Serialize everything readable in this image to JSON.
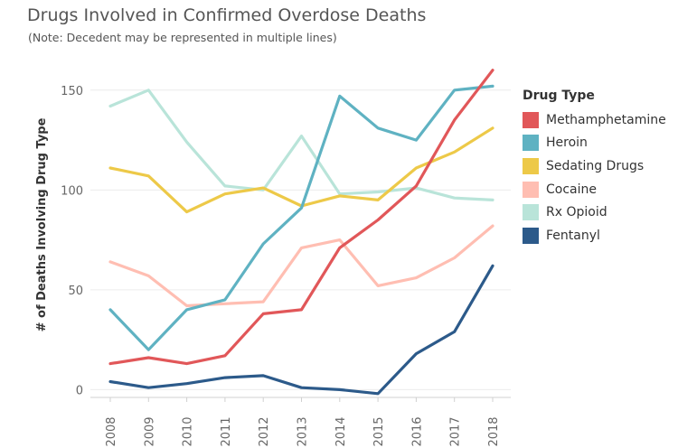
{
  "title": "Drugs Involved in Confirmed Overdose Deaths",
  "subtitle": "(Note: Decedent may be represented in multiple lines)",
  "chart_data": {
    "type": "line",
    "title": "Drugs Involved in Confirmed Overdose Deaths",
    "subtitle": "(Note: Decedent may be represented in multiple lines)",
    "xlabel": "",
    "ylabel": "# of Deaths Involving Drug Type",
    "x": [
      "2008",
      "2009",
      "2010",
      "2011",
      "2012",
      "2013",
      "2014",
      "2015",
      "2016",
      "2017",
      "2018"
    ],
    "yticks": [
      0,
      50,
      100,
      150
    ],
    "ylim": [
      -3,
      168
    ],
    "grid": "horizontal",
    "legend_title": "Drug Type",
    "legend_position": "right",
    "series": [
      {
        "name": "Methamphetamine",
        "color": "#e15759",
        "values": [
          13,
          16,
          13,
          17,
          38,
          40,
          71,
          85,
          102,
          135,
          160
        ]
      },
      {
        "name": "Heroin",
        "color": "#5fb2c2",
        "values": [
          40,
          20,
          40,
          45,
          73,
          91,
          147,
          131,
          125,
          150,
          152
        ]
      },
      {
        "name": "Sedating Drugs",
        "color": "#edc948",
        "values": [
          111,
          107,
          89,
          98,
          101,
          92,
          97,
          95,
          111,
          119,
          131
        ]
      },
      {
        "name": "Cocaine",
        "color": "#ffbeb2",
        "values": [
          64,
          57,
          42,
          43,
          44,
          71,
          75,
          52,
          56,
          66,
          82
        ]
      },
      {
        "name": "Rx Opioid",
        "color": "#b9e4d9",
        "values": [
          142,
          150,
          124,
          102,
          100,
          127,
          98,
          99,
          101,
          96,
          95
        ]
      },
      {
        "name": "Fentanyl",
        "color": "#2c5a8a",
        "values": [
          4,
          1,
          3,
          6,
          7,
          1,
          0,
          -2,
          18,
          29,
          62
        ]
      }
    ]
  }
}
